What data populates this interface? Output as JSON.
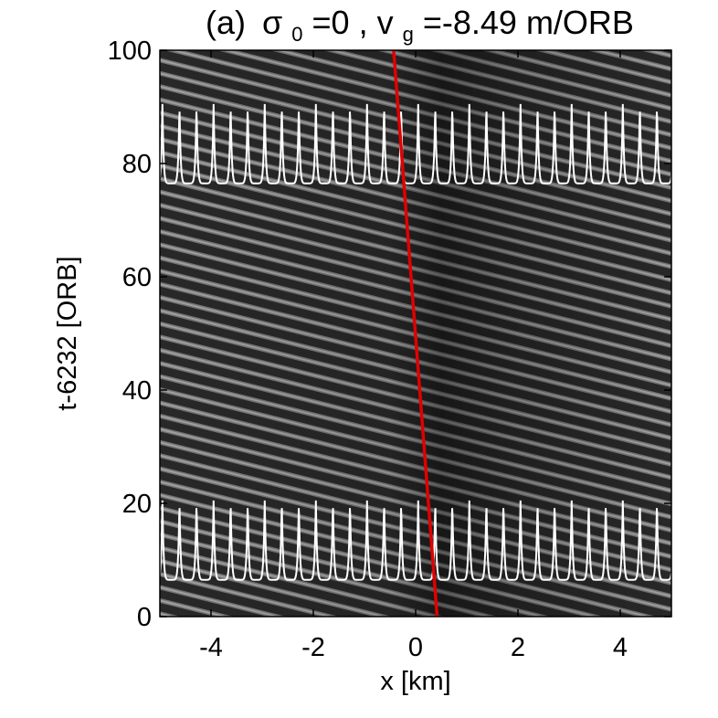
{
  "chart_data": {
    "type": "heatmap",
    "panel_label": "(a)",
    "title_parts": {
      "sigma_symbol": "σ",
      "sigma_subscript": "0",
      "sigma_value": "=0 , v",
      "velocity_subscript": "g",
      "velocity_value": "=-8.49 m/ORB"
    },
    "xlabel": "x [km]",
    "ylabel": "t-6232 [ORB]",
    "xlim": [
      -5,
      5
    ],
    "ylim": [
      0,
      100
    ],
    "x_ticks": [
      -4,
      -2,
      0,
      2,
      4
    ],
    "x_tick_labels": [
      "-4",
      "-2",
      "0",
      "2",
      "4"
    ],
    "y_ticks": [
      0,
      20,
      40,
      60,
      80,
      100
    ],
    "y_tick_labels": [
      "0",
      "20",
      "40",
      "60",
      "80",
      "100"
    ],
    "colormap": "grayscale",
    "background_pattern": "diagonal wave crests",
    "group_velocity_line": {
      "color": "#e00000",
      "x_at_t0": 0.42,
      "x_at_t100": -0.43
    },
    "wave_profiles": [
      {
        "name": "profile-early",
        "color": "#ffffff",
        "baseline_t": 6.5,
        "peak_t": 20.5,
        "n_peaks": 30
      },
      {
        "name": "profile-late",
        "color": "#ffffff",
        "baseline_t": 76.5,
        "peak_t": 90.5,
        "n_peaks": 30
      }
    ]
  }
}
